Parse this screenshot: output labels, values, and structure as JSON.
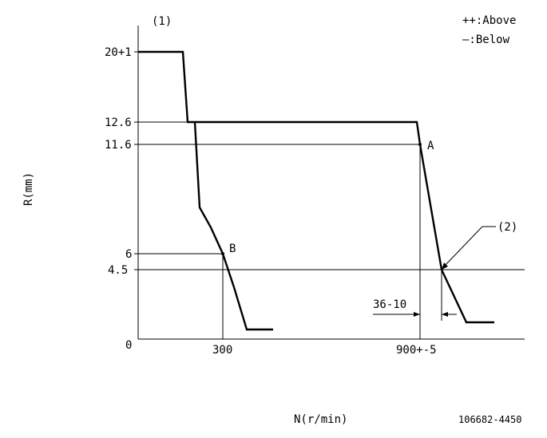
{
  "diagram": {
    "id_text": "106682-4450",
    "marker_1": "(1)",
    "marker_2": "(2)",
    "point_a": "A",
    "point_b": "B",
    "legend": {
      "above": "++:Above",
      "below": "—:Below"
    },
    "axes": {
      "y_label": "R(mm)",
      "x_label": "N(r/min)",
      "y_ticks": [
        "20+1",
        "12.6",
        "11.6",
        "6",
        "4.5",
        "0"
      ],
      "x_ticks": [
        "300",
        "900+-5"
      ]
    },
    "dimension_label": "36-10"
  }
}
